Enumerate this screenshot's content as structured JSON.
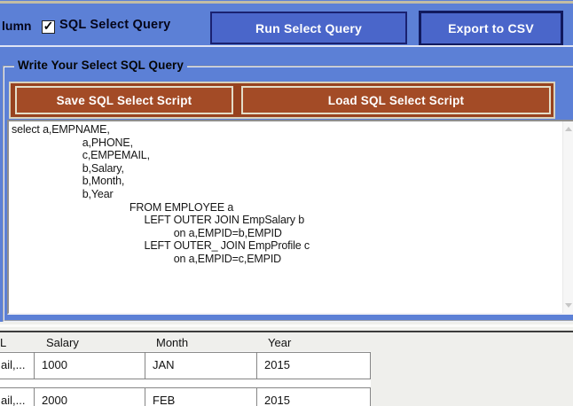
{
  "toolbar": {
    "truncated_label": "lumn",
    "checkbox_label": "SQL Select Query",
    "checkbox_checked": true,
    "run_button_label": "Run Select Query",
    "export_button_label": "Export to CSV"
  },
  "query_panel": {
    "group_title": "Write Your Select SQL Query",
    "save_button_label": "Save SQL Select Script",
    "load_button_label": "Load SQL Select Script",
    "sql_text": "select a,EMPNAME,\n                        a,PHONE,\n                        c,EMPEMAIL,\n                        b,Salary,\n                        b,Month,\n                        b,Year\n                                        FROM EMPLOYEE a\n                                             LEFT OUTER JOIN EmpSalary b\n                                                       on a,EMPID=b,EMPID\n                                             LEFT OUTER_ JOIN EmpProfile c\n                                                       on a,EMPID=c,EMPID"
  },
  "results_table": {
    "columns": [
      "L",
      "Salary",
      "Month",
      "Year"
    ],
    "rows": [
      [
        "ail,...",
        "1000",
        "JAN",
        "2015"
      ],
      [
        "ail,...",
        "2000",
        "FEB",
        "2015"
      ]
    ]
  },
  "icons": {
    "check": "✓"
  },
  "colors": {
    "background_blue": "#5c80d6",
    "button_blue": "#4a66ca",
    "border_navy": "#111a5e",
    "button_brown": "#a34b26",
    "beige_border": "#e3ddc8",
    "table_filler_gray": "#efefec",
    "grid_border_gray": "#868686"
  }
}
